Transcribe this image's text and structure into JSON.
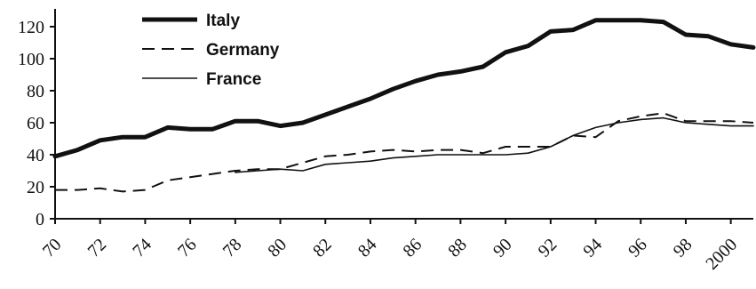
{
  "chart_data": {
    "type": "line",
    "title": "",
    "xlabel": "",
    "ylabel": "",
    "x": [
      1970,
      1971,
      1972,
      1973,
      1974,
      1975,
      1976,
      1977,
      1978,
      1979,
      1980,
      1981,
      1982,
      1983,
      1984,
      1985,
      1986,
      1987,
      1988,
      1989,
      1990,
      1991,
      1992,
      1993,
      1994,
      1995,
      1996,
      1997,
      1998,
      1999,
      2000,
      2001
    ],
    "xlim": [
      1970,
      2001
    ],
    "ylim": [
      0,
      120
    ],
    "yticks": [
      0,
      20,
      40,
      60,
      80,
      100,
      120
    ],
    "ytick_labels": [
      "0",
      "20",
      "40",
      "60",
      "80",
      "100",
      "120"
    ],
    "xticks": [
      1970,
      1972,
      1974,
      1976,
      1978,
      1980,
      1982,
      1984,
      1986,
      1988,
      1990,
      1992,
      1994,
      1996,
      1998,
      2000
    ],
    "xtick_labels": [
      "70",
      "72",
      "74",
      "76",
      "78",
      "80",
      "82",
      "84",
      "86",
      "88",
      "90",
      "92",
      "94",
      "96",
      "98",
      "2000"
    ],
    "grid": false,
    "legend_position": "top-left",
    "series": [
      {
        "name": "Italy",
        "style": "thick-solid",
        "values": [
          39,
          43,
          49,
          51,
          51,
          57,
          56,
          56,
          61,
          61,
          58,
          60,
          65,
          70,
          75,
          81,
          86,
          90,
          92,
          95,
          104,
          108,
          117,
          118,
          124,
          124,
          124,
          123,
          115,
          114,
          109,
          107
        ]
      },
      {
        "name": "Germany",
        "style": "dashed",
        "values": [
          18,
          18,
          19,
          17,
          18,
          24,
          26,
          28,
          30,
          31,
          31,
          35,
          39,
          40,
          42,
          43,
          42,
          43,
          43,
          41,
          45,
          45,
          45,
          52,
          51,
          61,
          64,
          66,
          61,
          61,
          61,
          60
        ]
      },
      {
        "name": "France",
        "style": "thin-solid",
        "values": [
          null,
          null,
          null,
          null,
          null,
          null,
          null,
          null,
          29,
          30,
          31,
          30,
          34,
          35,
          36,
          38,
          39,
          40,
          40,
          40,
          40,
          41,
          45,
          52,
          57,
          60,
          62,
          63,
          60,
          59,
          58,
          58
        ]
      }
    ]
  }
}
